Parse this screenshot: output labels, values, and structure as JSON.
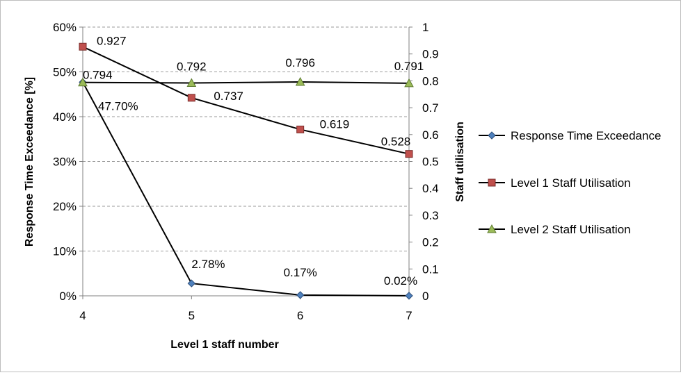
{
  "chart_data": {
    "type": "line",
    "title": "",
    "xlabel": "Level 1  staff number",
    "ylabel": "Response Time Exceedance [%]",
    "y2label": "Staff utilisation",
    "categories": [
      "4",
      "5",
      "6",
      "7"
    ],
    "ylim": [
      0,
      0.6
    ],
    "yticks": [
      "0%",
      "10%",
      "20%",
      "30%",
      "40%",
      "50%",
      "60%"
    ],
    "y2lim": [
      0,
      1
    ],
    "y2ticks": [
      "0",
      "0.1",
      "0.2",
      "0.3",
      "0.4",
      "0.5",
      "0.6",
      "0.7",
      "0.8",
      "0.9",
      "1"
    ],
    "grid": "horizontal dashed",
    "legend_position": "right",
    "series": [
      {
        "name": "Response Time Exceedance",
        "axis": "left",
        "marker": "diamond",
        "color": "#4f81bd",
        "values": [
          0.477,
          0.0278,
          0.0017,
          0.0002
        ],
        "labels": [
          "47.70%",
          "2.78%",
          "0.17%",
          "0.02%"
        ]
      },
      {
        "name": "Level 1 Staff Utilisation",
        "axis": "right",
        "marker": "square",
        "color": "#c0504d",
        "values": [
          0.927,
          0.737,
          0.619,
          0.528
        ],
        "labels": [
          "0.927",
          "0.737",
          "0.619",
          "0.528"
        ]
      },
      {
        "name": "Level 2 Staff Utilisation",
        "axis": "right",
        "marker": "triangle",
        "color": "#9bbb59",
        "values": [
          0.794,
          0.792,
          0.796,
          0.791
        ],
        "labels": [
          "0.794",
          "0.792",
          "0.796",
          "0.791"
        ]
      }
    ]
  }
}
